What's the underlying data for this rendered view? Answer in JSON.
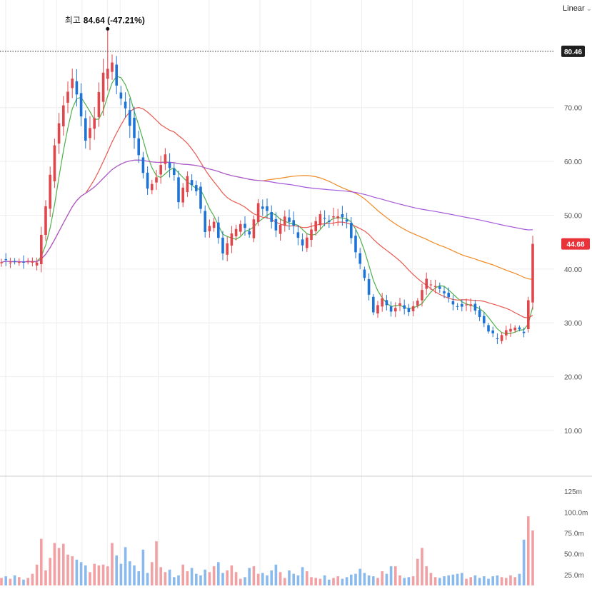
{
  "scale_mode": {
    "label": "Linear",
    "chevron_icon": "chevron-down-icon"
  },
  "colors": {
    "up": "#e0474c",
    "down": "#1e74d6",
    "volume_up": "#f1a0a3",
    "volume_down": "#8ab9ec",
    "ma5": "#4fb04a",
    "ma20": "#e8574f",
    "ma60": "#f08a24",
    "ma120": "#a559d9",
    "grid": "#eeeeee",
    "axis_text": "#555555"
  },
  "chart_data": {
    "type": "candlestick",
    "price_axis": {
      "ticks": [
        "10.00",
        "20.00",
        "30.00",
        "40.00",
        "50.00",
        "60.00",
        "70.00"
      ],
      "ylim": [
        1.5,
        90
      ]
    },
    "volume_axis": {
      "ticks": [
        "25.0m",
        "50.0m",
        "75.0m",
        "100.0m",
        "125m"
      ],
      "unit": "m",
      "ylim": [
        12,
        132
      ]
    },
    "high_annotation": {
      "label": "최고",
      "value": "84.64 (-47.21%)",
      "price": 84.64
    },
    "reference_line": {
      "label": "80.46",
      "price": 80.46
    },
    "current_price": {
      "label": "44.68",
      "price": 44.68
    },
    "waypoints": [
      [
        0,
        41.5
      ],
      [
        5,
        41.3
      ],
      [
        8,
        41.8
      ],
      [
        10,
        52
      ],
      [
        12,
        64
      ],
      [
        14,
        71
      ],
      [
        16,
        75
      ],
      [
        17,
        72.5
      ],
      [
        19,
        64
      ],
      [
        21,
        68
      ],
      [
        23,
        77.5
      ],
      [
        25,
        79.5
      ],
      [
        26,
        75
      ],
      [
        28,
        71
      ],
      [
        30,
        64
      ],
      [
        33,
        55
      ],
      [
        35,
        57
      ],
      [
        37,
        61
      ],
      [
        39,
        58
      ],
      [
        40,
        53
      ],
      [
        42,
        58
      ],
      [
        44,
        55
      ],
      [
        46,
        47
      ],
      [
        48,
        49
      ],
      [
        50,
        43
      ],
      [
        52,
        47
      ],
      [
        54,
        49
      ],
      [
        56,
        47
      ],
      [
        58,
        53
      ],
      [
        60,
        51
      ],
      [
        62,
        47
      ],
      [
        64,
        50
      ],
      [
        66,
        48
      ],
      [
        68,
        45
      ],
      [
        70,
        48
      ],
      [
        72,
        51
      ],
      [
        74,
        49.5
      ],
      [
        76,
        50
      ],
      [
        78,
        49
      ],
      [
        80,
        43
      ],
      [
        82,
        39
      ],
      [
        84,
        32.5
      ],
      [
        86,
        35
      ],
      [
        88,
        32.5
      ],
      [
        90,
        33.5
      ],
      [
        92,
        32
      ],
      [
        94,
        34
      ],
      [
        96,
        38
      ],
      [
        98,
        37.5
      ],
      [
        100,
        36
      ],
      [
        102,
        34
      ],
      [
        104,
        33
      ],
      [
        106,
        33.5
      ],
      [
        108,
        31
      ],
      [
        110,
        28.5
      ],
      [
        112,
        27.5
      ],
      [
        114,
        29
      ],
      [
        116,
        29.5
      ],
      [
        118,
        28.5
      ],
      [
        119,
        34
      ],
      [
        120,
        45
      ]
    ],
    "volume_series": [
      21,
      23,
      20,
      24,
      22,
      19,
      21,
      26,
      37,
      68,
      30,
      45,
      63,
      57,
      62,
      49,
      47,
      43,
      40,
      36,
      28,
      38,
      36,
      37,
      35,
      63,
      48,
      38,
      58,
      41,
      36,
      29,
      55,
      27,
      40,
      65,
      34,
      28,
      31,
      22,
      24,
      37,
      29,
      33,
      26,
      24,
      31,
      28,
      35,
      40,
      27,
      30,
      36,
      28,
      20,
      22,
      33,
      35,
      26,
      27,
      24,
      30,
      37,
      28,
      21,
      30,
      26,
      24,
      34,
      29,
      22,
      21,
      20,
      24,
      19,
      21,
      23,
      20,
      22,
      25,
      26,
      32,
      27,
      24,
      23,
      21,
      29,
      26,
      35,
      35,
      24,
      21,
      22,
      23,
      44,
      57,
      35,
      27,
      22,
      21,
      23,
      24,
      25,
      26,
      27,
      20,
      22,
      24,
      21,
      23,
      20,
      23,
      24,
      22,
      21,
      24,
      22,
      26,
      67,
      95,
      78
    ],
    "moving_averages": [
      "MA5",
      "MA20",
      "MA60",
      "MA120"
    ]
  }
}
